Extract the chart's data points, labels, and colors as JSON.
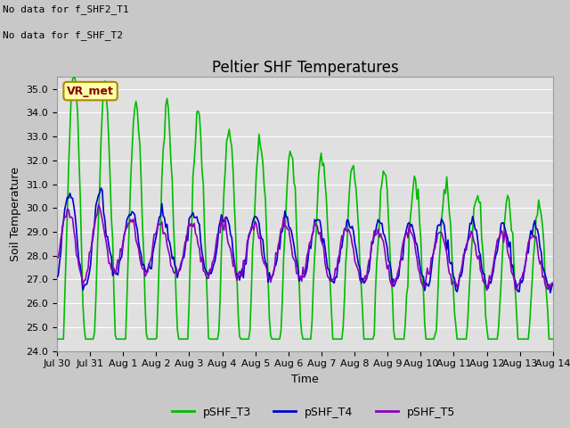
{
  "title": "Peltier SHF Temperatures",
  "xlabel": "Time",
  "ylabel": "Soil Temperature",
  "annotation_line1": "No data for f_SHF2_T1",
  "annotation_line2": "No data for f_SHF_T2",
  "vr_met_label": "VR_met",
  "ylim": [
    24.0,
    35.5
  ],
  "yticks": [
    24.0,
    25.0,
    26.0,
    27.0,
    28.0,
    29.0,
    30.0,
    31.0,
    32.0,
    33.0,
    34.0,
    35.0
  ],
  "xtick_labels": [
    "Jul 30",
    "Jul 31",
    "Aug 1",
    "Aug 2",
    "Aug 3",
    "Aug 4",
    "Aug 5",
    "Aug 6",
    "Aug 7",
    "Aug 8",
    "Aug 9",
    "Aug 10",
    "Aug 11",
    "Aug 12",
    "Aug 13",
    "Aug 14"
  ],
  "n_days": 16,
  "series": {
    "pSHF_T3": {
      "color": "#00bb00",
      "label": "pSHF_T3",
      "linewidth": 1.2
    },
    "pSHF_T4": {
      "color": "#0000cc",
      "label": "pSHF_T4",
      "linewidth": 1.2
    },
    "pSHF_T5": {
      "color": "#8800bb",
      "label": "pSHF_T5",
      "linewidth": 1.2
    }
  },
  "fig_facecolor": "#c8c8c8",
  "plot_bg_color": "#e0e0e0",
  "grid_color": "#ffffff",
  "title_fontsize": 12,
  "axis_fontsize": 9,
  "tick_fontsize": 8,
  "legend_fontsize": 9,
  "vr_met_box_facecolor": "#ffffaa",
  "vr_met_box_edgecolor": "#aa8800",
  "vr_met_text_color": "#880000"
}
